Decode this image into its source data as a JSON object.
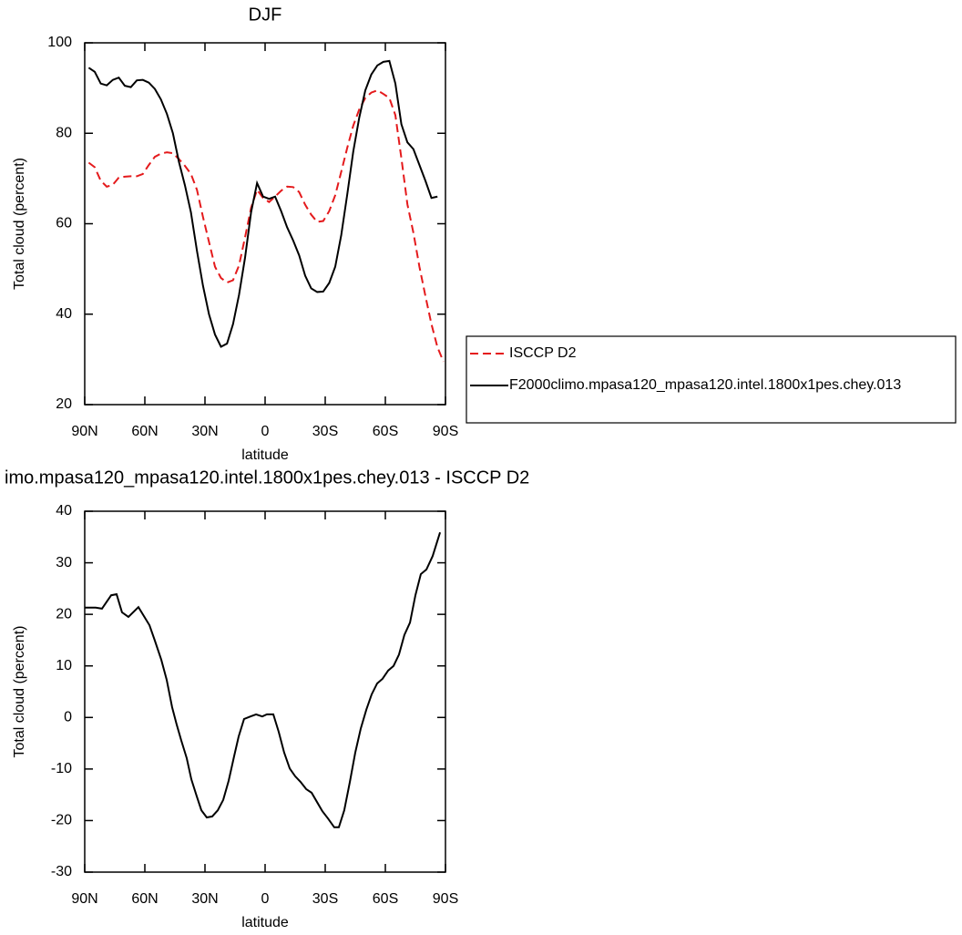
{
  "chart_data": [
    {
      "type": "line",
      "title": "DJF",
      "xlabel": "latitude",
      "ylabel": "Total cloud (percent)",
      "x": [
        88,
        85,
        82,
        79,
        76,
        73,
        70,
        67,
        64,
        61,
        58,
        55,
        52,
        49,
        46,
        43,
        40,
        37,
        34,
        31,
        28,
        25,
        22,
        19,
        16,
        13,
        10,
        7,
        4,
        1,
        -2,
        -5,
        -8,
        -11,
        -14,
        -17,
        -20,
        -23,
        -26,
        -29,
        -32,
        -35,
        -38,
        -41,
        -44,
        -47,
        -50,
        -53,
        -56,
        -59,
        -62,
        -65,
        -68,
        -71,
        -74,
        -77,
        -80,
        -83,
        -86,
        -89
      ],
      "series": [
        {
          "name": "ISCCP D2",
          "color": "#e41a1c",
          "line_style": "dashed",
          "values": [
            73.5,
            72.5,
            69.5,
            68.2,
            68.6,
            70.2,
            70.4,
            70.5,
            70.5,
            71,
            73,
            74.8,
            75.5,
            75.8,
            75.6,
            74.3,
            72.8,
            71,
            67.5,
            61.5,
            56,
            50.5,
            48,
            47,
            47.5,
            50.8,
            57,
            63.5,
            67.5,
            65.7,
            64.8,
            66,
            67.3,
            68.2,
            68.1,
            67,
            64.2,
            62,
            60.4,
            60.6,
            62.8,
            66.3,
            71.5,
            76.8,
            81.7,
            85.3,
            87.8,
            89,
            89.5,
            88.7,
            87.8,
            84,
            74.5,
            64.3,
            58,
            50.5,
            44,
            37.8,
            32.7,
            29.5
          ]
        },
        {
          "name": "F2000climo.mpasa120_mpasa120.intel.1800x1pes.chey.013",
          "color": "#000000",
          "line_style": "solid",
          "values": [
            94.5,
            93.6,
            91,
            90.6,
            91.8,
            92.3,
            90.5,
            90.2,
            91.7,
            91.8,
            91.2,
            89.8,
            87.5,
            84.3,
            80,
            73.7,
            68.5,
            62.5,
            54,
            46.3,
            40,
            35.5,
            32.8,
            33.5,
            37.8,
            44.3,
            52.5,
            62.5,
            69,
            66,
            65.5,
            66,
            62.8,
            59.2,
            56.3,
            53,
            48.5,
            45.7,
            44.9,
            45,
            46.9,
            50.5,
            57.5,
            66.5,
            76,
            83.5,
            89.5,
            93,
            95,
            95.8,
            96,
            91,
            82,
            78,
            76.5,
            73,
            69.5,
            65.7,
            66,
            null
          ]
        }
      ],
      "xlim": [
        90,
        -90
      ],
      "xticks": [
        {
          "value": 90,
          "label": "90N"
        },
        {
          "value": 60,
          "label": "60N"
        },
        {
          "value": 30,
          "label": "30N"
        },
        0,
        {
          "value": -30,
          "label": "30S"
        },
        {
          "value": -60,
          "label": "60S"
        },
        {
          "value": -90,
          "label": "90S"
        }
      ],
      "ylim": [
        20,
        100
      ],
      "yticks": [
        20,
        40,
        60,
        80,
        100
      ],
      "legend": "outside right"
    },
    {
      "type": "line",
      "title": "imo.mpasa120_mpasa120.intel.1800x1pes.chey.013 - ISCCP D2",
      "xlabel": "latitude",
      "ylabel": "Total cloud (percent)",
      "x": [
        90,
        84.5,
        81.4,
        76.8,
        74.1,
        71.4,
        68.2,
        63.2,
        57.7,
        55,
        51.8,
        49.1,
        46.4,
        44.1,
        41.8,
        39.1,
        36.8,
        34.1,
        31.8,
        29.1,
        26.4,
        23.6,
        20.9,
        18.2,
        15.5,
        13.2,
        10.5,
        7.3,
        4.5,
        1.4,
        -0.9,
        -4.1,
        -6.8,
        -9.5,
        -12.3,
        -15,
        -17.7,
        -20.5,
        -23.2,
        -25.9,
        -28.6,
        -31.4,
        -34.5,
        -36.8,
        -39.5,
        -42.3,
        -45,
        -47.7,
        -50.5,
        -53.2,
        -55.9,
        -58.6,
        -61.4,
        -64.1,
        -66.8,
        -69.5,
        -72.3,
        -75,
        -77.7,
        -80.5,
        -83.6,
        -87.3
      ],
      "values": [
        21.3,
        21.3,
        21.1,
        23.7,
        23.9,
        20.4,
        19.5,
        21.4,
        17.9,
        14.9,
        11.2,
        7.3,
        2,
        -1.4,
        -4.5,
        -7.9,
        -12,
        -15.3,
        -18,
        -19.4,
        -19.2,
        -18,
        -16,
        -12.3,
        -7.6,
        -3.7,
        -0.3,
        0.2,
        0.6,
        0.2,
        0.6,
        0.6,
        -2.8,
        -6.8,
        -9.9,
        -11.4,
        -12.5,
        -13.9,
        -14.6,
        -16.4,
        -18.2,
        -19.6,
        -21.3,
        -21.3,
        -18,
        -12.5,
        -6.8,
        -2.2,
        1.5,
        4.5,
        6.6,
        7.5,
        9.1,
        10,
        12.2,
        16,
        18.4,
        23.7,
        27.8,
        28.7,
        31.3,
        35.9
      ],
      "color": "#000000",
      "xlim": [
        90,
        -90
      ],
      "xticks": [
        {
          "value": 90,
          "label": "90N"
        },
        {
          "value": 60,
          "label": "60N"
        },
        {
          "value": 30,
          "label": "30N"
        },
        0,
        {
          "value": -30,
          "label": "30S"
        },
        {
          "value": -60,
          "label": "60S"
        },
        {
          "value": -90,
          "label": "90S"
        }
      ],
      "ylim": [
        -30,
        40
      ],
      "yticks": [
        -30,
        -20,
        -10,
        0,
        10,
        20,
        30,
        40
      ]
    }
  ]
}
